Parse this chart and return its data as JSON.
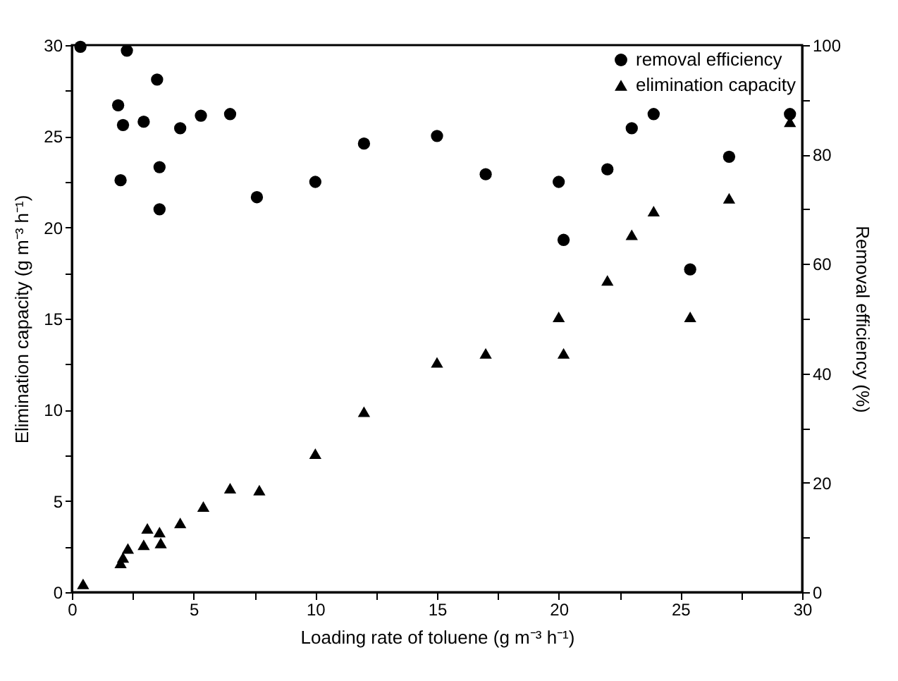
{
  "chart_data": {
    "type": "scatter",
    "xlabel": "Loading rate of toluene (g m⁻³ h⁻¹)",
    "ylabel": "Elimination capacity (g m⁻³ h⁻¹)",
    "y2label": "Removal efficiency (%)",
    "xlim": [
      0,
      30
    ],
    "xticks": [
      0,
      {
        "value": 2.5,
        "label": null
      },
      5,
      {
        "value": 7.5,
        "label": null
      },
      10,
      {
        "value": 12.5,
        "label": null
      },
      15,
      {
        "value": 17.5,
        "label": null
      },
      20,
      {
        "value": 22.5,
        "label": null
      },
      25,
      {
        "value": 27.5,
        "label": null
      },
      30
    ],
    "ylim": [
      0,
      30
    ],
    "yticks": [
      0,
      {
        "value": 2.5,
        "label": null
      },
      5,
      {
        "value": 7.5,
        "label": null
      },
      10,
      {
        "value": 12.5,
        "label": null
      },
      15,
      {
        "value": 17.5,
        "label": null
      },
      20,
      {
        "value": 22.5,
        "label": null
      },
      25,
      {
        "value": 27.5,
        "label": null
      },
      30
    ],
    "y2lim": [
      0,
      100
    ],
    "y2ticks": [
      0,
      {
        "value": 10,
        "label": null
      },
      20,
      {
        "value": 30,
        "label": null
      },
      40,
      {
        "value": 50,
        "label": null
      },
      60,
      {
        "value": 70,
        "label": null
      },
      80,
      {
        "value": 90,
        "label": null
      },
      100
    ],
    "legend": "top right",
    "grid": false,
    "series": [
      {
        "name": "removal efficiency",
        "color": "#000000",
        "marker": "circle",
        "axis": "y2",
        "x": [
          0.35,
          2.26,
          1.9,
          2.1,
          2.95,
          3.5,
          4.45,
          5.3,
          6.5,
          2.0,
          3.6,
          3.6,
          7.6,
          10.0,
          12.0,
          15.0,
          17.0,
          20.0,
          20.2,
          22.0,
          23.0,
          23.9,
          25.4,
          27.0,
          29.5
        ],
        "values": [
          99.7,
          99,
          89,
          85.4,
          86,
          93.7,
          84.8,
          87.1,
          87.4,
          75.3,
          77.7,
          70,
          72.2,
          75,
          82,
          83.4,
          76.4,
          75,
          64.4,
          77.3,
          84.8,
          87.4,
          59,
          79.6,
          87.4
        ]
      },
      {
        "name": "elimination capacity",
        "color": "#000000",
        "marker": "triangle",
        "x": [
          0.46,
          2.0,
          2.1,
          2.3,
          2.95,
          3.1,
          3.6,
          3.65,
          4.45,
          5.4,
          6.5,
          7.7,
          10.0,
          12.0,
          15.0,
          17.0,
          20.0,
          20.2,
          22.0,
          23.0,
          23.9,
          25.4,
          27.0,
          29.5
        ],
        "values": [
          0.45,
          1.6,
          1.9,
          2.4,
          2.6,
          3.5,
          3.3,
          2.7,
          3.8,
          4.7,
          5.7,
          5.6,
          7.6,
          9.9,
          12.6,
          13.1,
          15.1,
          13.1,
          17.1,
          19.6,
          20.9,
          15.1,
          21.6,
          25.8
        ]
      }
    ]
  }
}
